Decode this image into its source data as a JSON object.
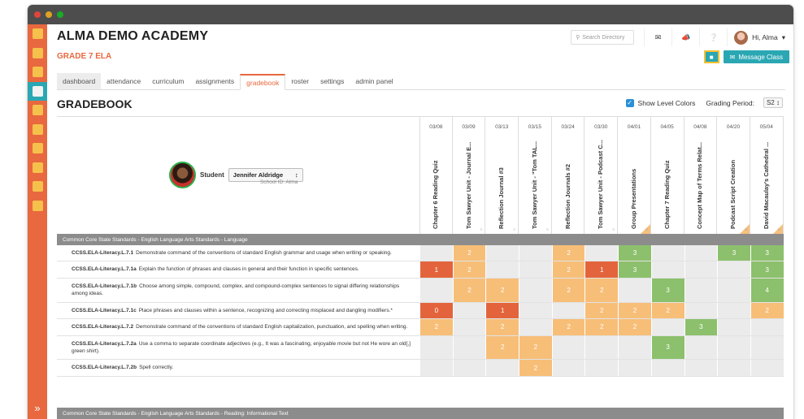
{
  "window": {
    "dot_colors": [
      "#e0443e",
      "#dea123",
      "#1aab29"
    ]
  },
  "sidebar": {
    "icons": [
      "school-icon",
      "book-icon",
      "calendar-icon",
      "apple-icon",
      "document-icon",
      "report-card-icon",
      "alert-icon",
      "dollar-icon",
      "list-icon",
      "house-icon"
    ],
    "active_index": 3,
    "expand_glyph": "»"
  },
  "header": {
    "school_name": "ALMA DEMO ACADEMY",
    "class_name": "GRADE 7 ELA",
    "search_placeholder": "Search Directory",
    "greeting": "Hi, Alma",
    "message_button": "Message Class"
  },
  "tabs": [
    "dashboard",
    "attendance",
    "curriculum",
    "assignments",
    "gradebook",
    "roster",
    "settings",
    "admin panel"
  ],
  "active_tab": "gradebook",
  "gradebook": {
    "title": "GRADEBOOK",
    "show_level_colors": "Show Level Colors",
    "grading_period_label": "Grading Period:",
    "grading_period_value": "S2",
    "student_label": "Student",
    "student_name": "Jennifer Aldridge",
    "school_id": "School ID: Alma"
  },
  "assignments": [
    {
      "date": "03/08",
      "name": "Chapter 6 Reading Quiz",
      "corner": false,
      "comment": false
    },
    {
      "date": "03/09",
      "name": "Tom Sawyer Unit - Journal E...",
      "corner": false,
      "comment": true
    },
    {
      "date": "03/13",
      "name": "Reflection Journal #3",
      "corner": false,
      "comment": true
    },
    {
      "date": "03/15",
      "name": "Tom Sawyer Unit - \"Tom TAL...",
      "corner": false,
      "comment": true
    },
    {
      "date": "03/24",
      "name": "Reflection Journals #2",
      "corner": false,
      "comment": false
    },
    {
      "date": "03/30",
      "name": "Tom Sawyer Unit - Podcast C...",
      "corner": false,
      "comment": true
    },
    {
      "date": "04/01",
      "name": "Group Presentations",
      "corner": true,
      "comment": true
    },
    {
      "date": "04/05",
      "name": "Chapter 7 Reading Quiz",
      "corner": false,
      "comment": false
    },
    {
      "date": "04/08",
      "name": "Concept Map of Terms Relat...",
      "corner": false,
      "comment": false
    },
    {
      "date": "04/20",
      "name": "Podcast Script Creation",
      "corner": true,
      "comment": true
    },
    {
      "date": "05/04",
      "name": "David Macaulay's Cathedral ...",
      "corner": true,
      "comment": true
    }
  ],
  "sections": [
    "Common Core State Standards - English Language Arts Standards - Language",
    "Common Core State Standards - English Language Arts Standards - Reading: Informational Text"
  ],
  "standards": [
    {
      "code": "CCSS.ELA-Literacy.L.7.1",
      "desc": "Demonstrate command of the conventions of standard English grammar and usage when writing or speaking.",
      "scores": [
        "",
        "2",
        "",
        "",
        "2",
        "",
        "3",
        "",
        "",
        "3",
        "3"
      ]
    },
    {
      "code": "CCSS.ELA-Literacy.L.7.1a",
      "desc": "Explain the function of phrases and clauses in general and their function in specific sentences.",
      "scores": [
        "1",
        "2",
        "",
        "",
        "2",
        "1",
        "3",
        "",
        "",
        "",
        "3"
      ]
    },
    {
      "code": "CCSS.ELA-Literacy.L.7.1b",
      "desc": "Choose among simple, compound, complex, and compound-complex sentences to signal differing relationships among ideas.",
      "scores": [
        "",
        "2",
        "2",
        "",
        "2",
        "2",
        "",
        "3",
        "",
        "",
        "4"
      ]
    },
    {
      "code": "CCSS.ELA-Literacy.L.7.1c",
      "desc": "Place phrases and clauses within a sentence, recognizing and correcting misplaced and dangling modifiers.*",
      "scores": [
        "0",
        "",
        "1",
        "",
        "",
        "2",
        "2",
        "2",
        "",
        "",
        "2"
      ]
    },
    {
      "code": "CCSS.ELA-Literacy.L.7.2",
      "desc": "Demonstrate command of the conventions of standard English capitalization, punctuation, and spelling when writing.",
      "scores": [
        "2",
        "",
        "2",
        "",
        "2",
        "2",
        "2",
        "",
        "3",
        "",
        ""
      ]
    },
    {
      "code": "CCSS.ELA-Literacy.L.7.2a",
      "desc": "Use a comma to separate coordinate adjectives (e.g., It was a fascinating, enjoyable movie but not He wore an old[,] green shirt).",
      "scores": [
        "",
        "",
        "2",
        "2",
        "",
        "",
        "",
        "3",
        "",
        "",
        ""
      ]
    },
    {
      "code": "CCSS.ELA-Literacy.L.7.2b",
      "desc": "Spell correctly.",
      "scores": [
        "",
        "",
        "",
        "2",
        "",
        "",
        "",
        "",
        "",
        "",
        ""
      ]
    }
  ]
}
